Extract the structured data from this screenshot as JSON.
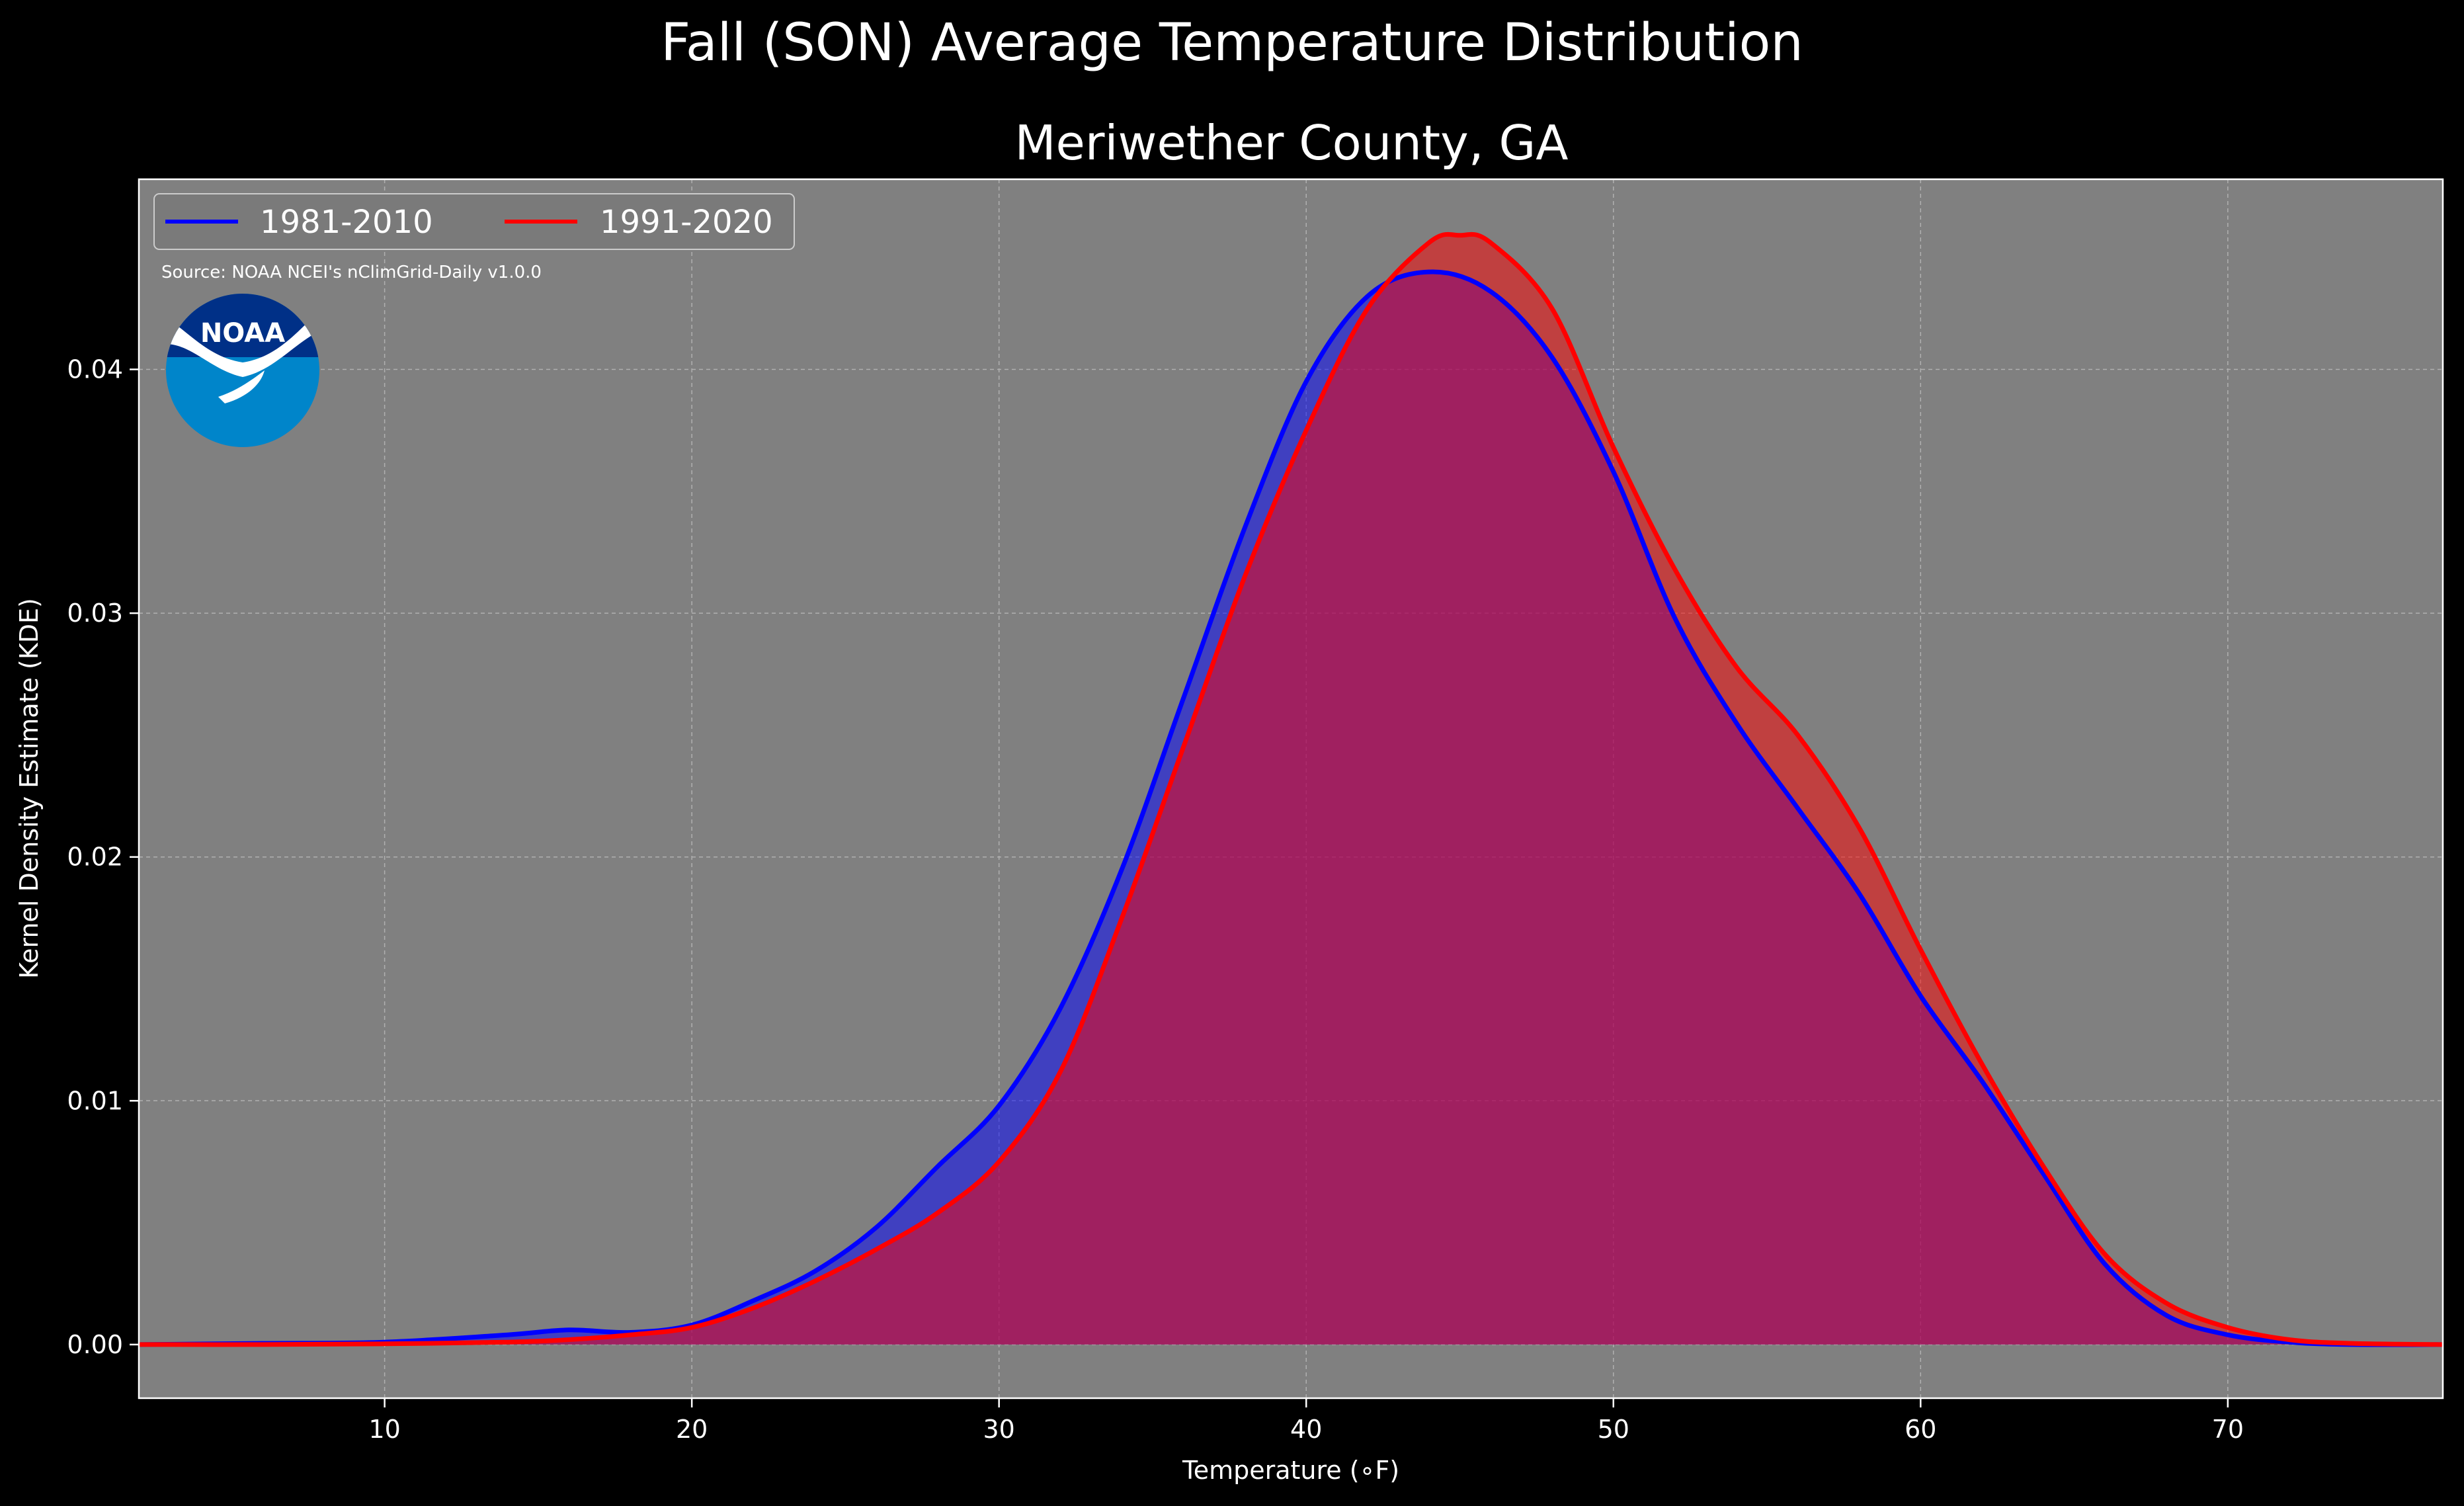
{
  "chart_data": {
    "type": "area",
    "suptitle": "Fall (SON) Average Temperature Distribution",
    "title": "Meriwether County, GA",
    "xlabel": "Temperature (∘F)",
    "ylabel": "Kernel Density Estimate (KDE)",
    "xlim": [
      2,
      77
    ],
    "ylim": [
      -0.0022,
      0.0478
    ],
    "xticks": [
      "10",
      "20",
      "30",
      "40",
      "50",
      "60",
      "70"
    ],
    "yticks": [
      "0.00",
      "0.01",
      "0.02",
      "0.03",
      "0.04"
    ],
    "grid": true,
    "legend_placement": "top-left",
    "source": "Source: NOAA NCEI's nClimGrid-Daily v1.0.0",
    "logo_text": "NOAA",
    "series": [
      {
        "name": "1981-2010",
        "color": "#0000ff",
        "fill": "#0000ff",
        "x": [
          2,
          6,
          10,
          14,
          16,
          18,
          20,
          22,
          24,
          26,
          28,
          30,
          32,
          34,
          36,
          38,
          40,
          42,
          44,
          46,
          48,
          50,
          52,
          54,
          56,
          58,
          60,
          62,
          64,
          66,
          68,
          70,
          72,
          74,
          77
        ],
        "y": [
          0,
          5e-05,
          0.0001,
          0.0004,
          0.0006,
          0.0005,
          0.0008,
          0.0018,
          0.003,
          0.0048,
          0.0073,
          0.0098,
          0.0138,
          0.0195,
          0.0265,
          0.0335,
          0.0395,
          0.043,
          0.044,
          0.0432,
          0.0405,
          0.0358,
          0.0298,
          0.0255,
          0.022,
          0.0185,
          0.0143,
          0.0108,
          0.007,
          0.0033,
          0.0012,
          0.0004,
          0.0001,
          0,
          0
        ]
      },
      {
        "name": "1991-2020",
        "color": "#ff0000",
        "fill": "#ff0000",
        "x": [
          2,
          6,
          10,
          14,
          16,
          18,
          20,
          22,
          24,
          26,
          28,
          30,
          32,
          34,
          36,
          38,
          40,
          42,
          44,
          45,
          46,
          48,
          50,
          52,
          54,
          56,
          58,
          60,
          62,
          64,
          66,
          68,
          70,
          72,
          74,
          77
        ],
        "y": [
          0,
          0,
          3e-05,
          0.0001,
          0.0002,
          0.0004,
          0.0007,
          0.0015,
          0.0026,
          0.0039,
          0.0054,
          0.0075,
          0.0112,
          0.0175,
          0.0245,
          0.0315,
          0.0375,
          0.0425,
          0.0452,
          0.0455,
          0.0452,
          0.0425,
          0.0368,
          0.0318,
          0.0278,
          0.025,
          0.0212,
          0.0162,
          0.0115,
          0.0073,
          0.0037,
          0.0017,
          0.0007,
          0.0002,
          5e-05,
          0
        ]
      }
    ]
  }
}
